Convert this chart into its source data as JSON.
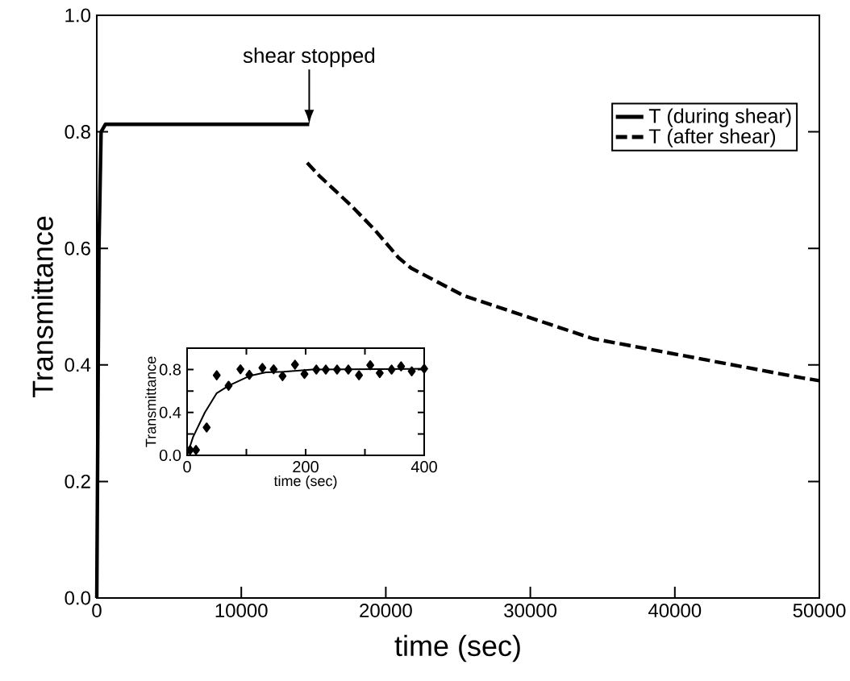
{
  "chart_data": [
    {
      "type": "line",
      "xlabel": "time (sec)",
      "ylabel": "Transmittance",
      "xlim": [
        0,
        50000
      ],
      "ylim": [
        0,
        1.0
      ],
      "xticks": [
        0,
        10000,
        20000,
        30000,
        40000,
        50000
      ],
      "yticks": [
        {
          "value": 0,
          "label": "0.0"
        },
        {
          "value": 0.2,
          "label": "0.2"
        },
        {
          "value": 0.4,
          "label": "0.4"
        },
        {
          "value": 0.6,
          "label": "0.6"
        },
        {
          "value": 0.8,
          "label": "0.8"
        },
        {
          "value": 1.0,
          "label": "1.0"
        }
      ],
      "grid": false,
      "legend": "top right",
      "marker": "none",
      "annotations": [
        "shear stopped"
      ],
      "series": [
        {
          "name": "T (during shear)",
          "color": "#000000",
          "line_style": "solid",
          "x": [
            0,
            150,
            300,
            600,
            14700
          ],
          "values": [
            0,
            0.6,
            0.8,
            0.813,
            0.813
          ]
        },
        {
          "name": "T (after shear)",
          "color": "#000000",
          "line_style": "dashed",
          "x": [
            14560,
            15380,
            17580,
            19230,
            20880,
            21760,
            25380,
            34340,
            48740,
            50000
          ],
          "values": [
            0.747,
            0.725,
            0.674,
            0.632,
            0.584,
            0.566,
            0.519,
            0.445,
            0.378,
            0.373
          ]
        }
      ]
    },
    {
      "type": "scatter",
      "xlabel": "time (sec)",
      "ylabel": "Transmittance",
      "xlim": [
        0,
        400
      ],
      "ylim": [
        0,
        1.0
      ],
      "xticks": [
        0,
        {
          "value": 100,
          "label": null
        },
        200,
        {
          "value": 300,
          "label": null
        },
        400
      ],
      "yticks": [
        {
          "value": 0,
          "label": "0.0"
        },
        {
          "value": 0.2,
          "label": null
        },
        {
          "value": 0.4,
          "label": "0.4"
        },
        {
          "value": 0.6,
          "label": null
        },
        {
          "value": 0.8,
          "label": "0.8"
        }
      ],
      "grid": false,
      "legend": false,
      "series": [
        {
          "type": "scatter",
          "marker": "diamond",
          "color": "#000000",
          "x": [
            5,
            15,
            33,
            50,
            70,
            90,
            105,
            127,
            146,
            161,
            182,
            198,
            218,
            234,
            253,
            272,
            290,
            309,
            325,
            345,
            361,
            379,
            400
          ],
          "values": [
            0.05,
            0.05,
            0.26,
            0.747,
            0.649,
            0.803,
            0.751,
            0.816,
            0.803,
            0.739,
            0.846,
            0.759,
            0.8,
            0.8,
            0.8,
            0.8,
            0.747,
            0.841,
            0.767,
            0.8,
            0.83,
            0.784,
            0.808
          ]
        },
        {
          "type": "line",
          "marker": "none",
          "line_style": "solid",
          "color": "#000000",
          "x": [
            0,
            10,
            30,
            50,
            70,
            105,
            133,
            163,
            212,
            400
          ],
          "values": [
            0,
            0.17,
            0.4,
            0.58,
            0.65,
            0.74,
            0.775,
            0.78,
            0.8,
            0.808
          ]
        }
      ]
    }
  ]
}
